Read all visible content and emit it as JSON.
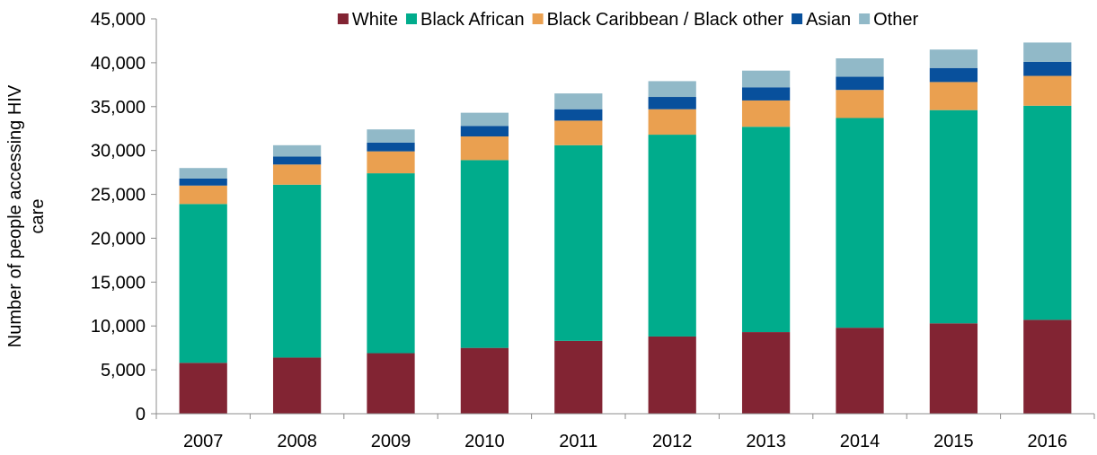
{
  "chart_data": {
    "type": "bar",
    "stacked": true,
    "title": "",
    "xlabel": "",
    "ylabel_lines": [
      "Number of people accessing HIV",
      "care"
    ],
    "ylim": [
      0,
      45000
    ],
    "yticks": [
      0,
      5000,
      10000,
      15000,
      20000,
      25000,
      30000,
      35000,
      40000,
      45000
    ],
    "ytick_labels": [
      "0",
      "5,000",
      "10,000",
      "15,000",
      "20,000",
      "25,000",
      "30,000",
      "35,000",
      "40,000",
      "45,000"
    ],
    "categories": [
      "2007",
      "2008",
      "2009",
      "2010",
      "2011",
      "2012",
      "2013",
      "2014",
      "2015",
      "2016"
    ],
    "legend_position": "top",
    "grid": false,
    "series": [
      {
        "name": "White",
        "color": "#822433",
        "values": [
          5800,
          6400,
          6900,
          7500,
          8300,
          8800,
          9300,
          9800,
          10300,
          10700
        ]
      },
      {
        "name": "Black African",
        "color": "#00AC8C",
        "values": [
          18100,
          19700,
          20500,
          21400,
          22300,
          23000,
          23400,
          23900,
          24300,
          24400
        ]
      },
      {
        "name": "Black Caribbean / Black other",
        "color": "#EAA050",
        "values": [
          2100,
          2300,
          2500,
          2700,
          2800,
          2900,
          3000,
          3200,
          3200,
          3400
        ]
      },
      {
        "name": "Asian",
        "color": "#08509C",
        "values": [
          800,
          900,
          1000,
          1200,
          1300,
          1400,
          1500,
          1500,
          1600,
          1600
        ]
      },
      {
        "name": "Other",
        "color": "#91B9C8",
        "values": [
          1200,
          1300,
          1500,
          1500,
          1800,
          1800,
          1900,
          2100,
          2100,
          2200
        ]
      }
    ]
  }
}
